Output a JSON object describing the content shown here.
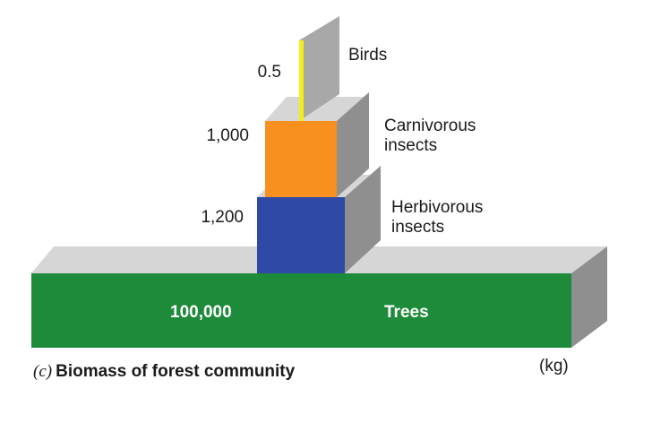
{
  "caption": {
    "letter": "(c)",
    "title": "Biomass of forest community"
  },
  "unit": "(kg)",
  "levels": [
    {
      "name": "Trees",
      "value": "100,000",
      "color": "#1e8b3a"
    },
    {
      "name_lines": [
        "Herbivorous",
        "insects"
      ],
      "value": "1,200",
      "color": "#2e4aa6"
    },
    {
      "name_lines": [
        "Carnivorous",
        "insects"
      ],
      "value": "1,000",
      "color": "#f7901e"
    },
    {
      "name": "Birds",
      "value": "0.5",
      "color": "#f2ee1c"
    }
  ],
  "colors": {
    "side_face": "#8f8f8f",
    "top_face": "#d6d6d6",
    "back_face": "#a8a8a8"
  }
}
